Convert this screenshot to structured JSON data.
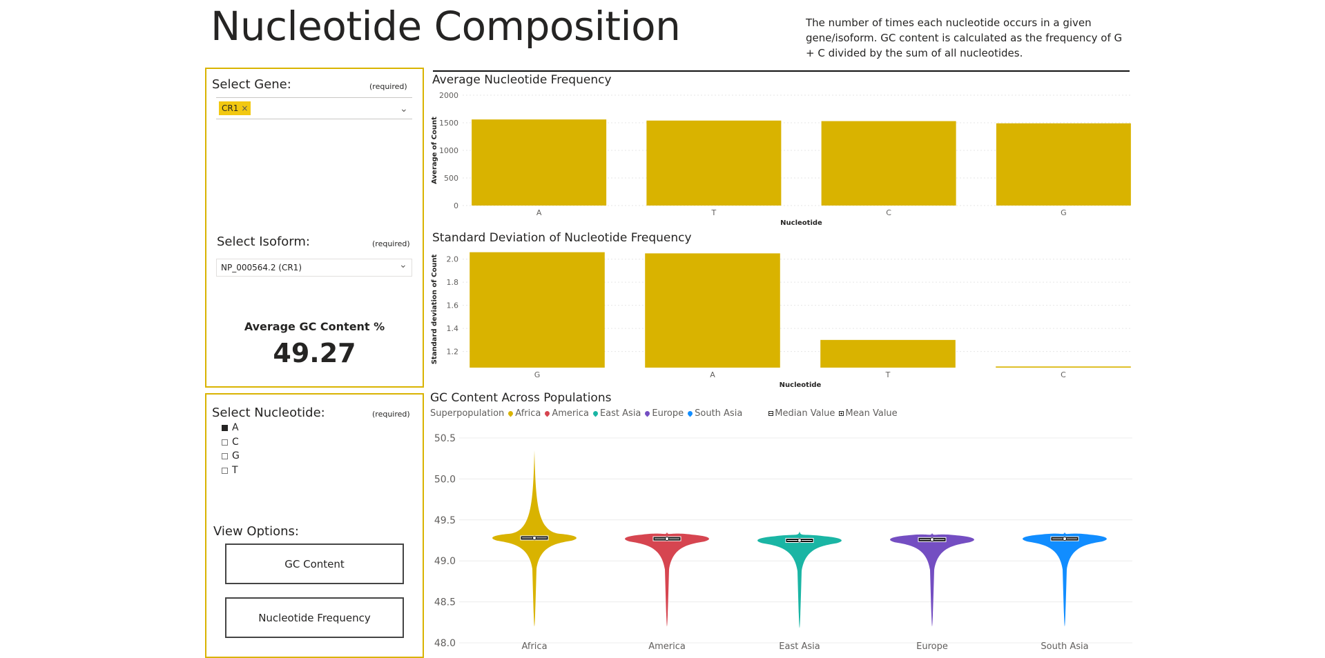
{
  "header": {
    "title": "Nucleotide Composition",
    "description": "The number of times each nucleotide occurs in a given gene/isoform. GC content is calculated as the frequency of G + C divided by the sum of all nucleotides."
  },
  "gene_slicer": {
    "label": "Select Gene:",
    "required": "(required)",
    "chip": "CR1",
    "chip_close": "×"
  },
  "isoform_slicer": {
    "label": "Select Isoform:",
    "required": "(required)",
    "value": "NP_000564.2 (CR1)"
  },
  "kpi": {
    "label": "Average GC Content %",
    "value": "49.27"
  },
  "nucleotide_slicer": {
    "label": "Select Nucleotide:",
    "required": "(required)",
    "options": [
      {
        "label": "A",
        "checked": true
      },
      {
        "label": "C",
        "checked": false
      },
      {
        "label": "G",
        "checked": false
      },
      {
        "label": "T",
        "checked": false
      }
    ]
  },
  "view_options": {
    "label": "View Options:",
    "buttons": [
      "GC Content",
      "Nucleotide Frequency"
    ]
  },
  "colors": {
    "accent": "#d9b300",
    "Africa": "#d9b300",
    "America": "#d64550",
    "East Asia": "#1ab5a4",
    "Europe": "#744ec2",
    "South Asia": "#118dff"
  },
  "chart_data": [
    {
      "type": "bar",
      "title": "Average Nucleotide Frequency",
      "xlabel": "Nucleotide",
      "ylabel": "Average of Count",
      "categories": [
        "A",
        "T",
        "C",
        "G"
      ],
      "values": [
        1560,
        1540,
        1530,
        1490
      ],
      "ylim": [
        0,
        2000
      ],
      "yticks": [
        "0",
        "500",
        "1000",
        "1500",
        "2000"
      ],
      "grid": true
    },
    {
      "type": "bar",
      "title": "Standard Deviation of Nucleotide Frequency",
      "xlabel": "Nucleotide",
      "ylabel": "Standard deviation of Count",
      "categories": [
        "G",
        "A",
        "T",
        "C"
      ],
      "values": [
        2.06,
        2.05,
        1.3,
        1.07
      ],
      "ylim": [
        1.06,
        2.07
      ],
      "yticks": [
        "1.2",
        "1.4",
        "1.6",
        "1.8",
        "2.0"
      ],
      "grid": true
    },
    {
      "type": "violin",
      "title": "GC Content Across Populations",
      "legend_title": "Superpopulation",
      "legend_median": "Median Value",
      "legend_mean": "Mean Value",
      "categories": [
        "Africa",
        "America",
        "East Asia",
        "Europe",
        "South Asia"
      ],
      "median": [
        49.28,
        49.27,
        49.25,
        49.26,
        49.27
      ],
      "mean": [
        49.28,
        49.27,
        49.25,
        49.26,
        49.27
      ],
      "min": [
        48.2,
        48.2,
        48.18,
        48.2,
        48.2
      ],
      "max": [
        50.35,
        49.35,
        49.36,
        49.34,
        49.35
      ],
      "ylim": [
        48.0,
        50.5
      ],
      "yticks": [
        "48.0",
        "48.5",
        "49.0",
        "49.5",
        "50.0",
        "50.5"
      ],
      "grid": true
    }
  ]
}
